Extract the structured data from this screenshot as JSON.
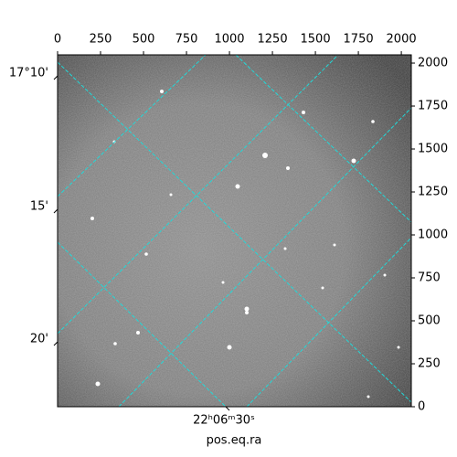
{
  "chart_data": {
    "type": "image",
    "xlabel": "pos.eq.ra",
    "xlim": [
      0,
      2058
    ],
    "ylim": [
      0,
      2048
    ],
    "xticks": [
      0,
      250,
      500,
      750,
      1000,
      1250,
      1500,
      1750,
      2000
    ],
    "yticks": [
      0,
      250,
      500,
      750,
      1000,
      1250,
      1500,
      1750,
      2000
    ],
    "dec_tick_labels": [
      "17°10'",
      "15'",
      "20'"
    ],
    "ra_tick_labels": [
      "22ʰ06ᵐ30ˢ"
    ],
    "grid": true,
    "grid_color": "#22d8d8"
  }
}
